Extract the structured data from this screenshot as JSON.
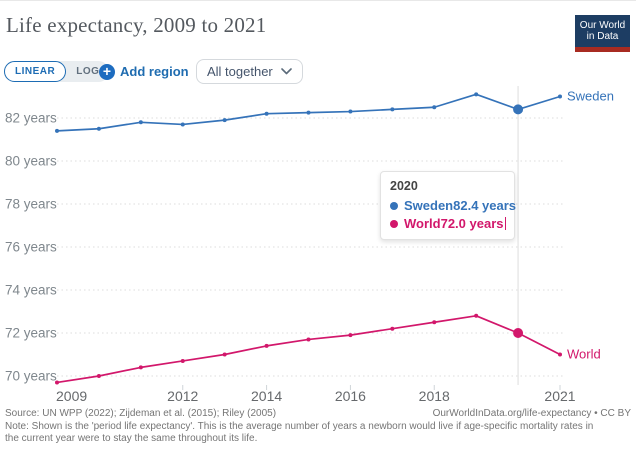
{
  "header": {
    "title": "Life expectancy, 2009 to 2021",
    "logo": {
      "line1": "Our World",
      "line2": "in Data"
    }
  },
  "controls": {
    "linear_label": "LINEAR",
    "log_label": "LOG",
    "add_region_label": "Add region",
    "plus_icon": "+",
    "entity_selector_value": "All together"
  },
  "tooltip": {
    "year": "2020",
    "rows": [
      {
        "name": "Sweden",
        "value": "82.4 years"
      },
      {
        "name": "World",
        "value": "72.0 years"
      }
    ]
  },
  "footer": {
    "source": "Source: UN WPP (2022); Zijdeman et al. (2015); Riley (2005)",
    "attribution": "OurWorldInData.org/life-expectancy • CC BY",
    "note": "Note: Shown is the 'period life expectancy'. This is the average number of years a newborn would live if age-specific mortality rates in the current year were to stay the same throughout its life."
  },
  "colors": {
    "sweden": "#3573b9",
    "world": "#d2176b",
    "grid": "#dcdcdc",
    "highlight_line": "#e8e8e8",
    "tick": "#cfd4d8",
    "y_label": "#7f878d",
    "x_label": "#66696c",
    "accent_blue": "#1d6cb4",
    "logo_bg": "#1d3d63",
    "logo_accent": "#a82b21"
  },
  "chart_data": {
    "type": "line",
    "title": "Life expectancy, 2009 to 2021",
    "xlabel": "",
    "ylabel": "",
    "x": [
      2009,
      2010,
      2011,
      2012,
      2013,
      2014,
      2015,
      2016,
      2017,
      2018,
      2019,
      2020,
      2021
    ],
    "series": [
      {
        "name": "Sweden",
        "color": "#3573b9",
        "values": [
          81.4,
          81.5,
          81.8,
          81.7,
          81.9,
          82.2,
          82.25,
          82.3,
          82.4,
          82.5,
          83.1,
          82.4,
          83.0
        ]
      },
      {
        "name": "World",
        "color": "#d2176b",
        "values": [
          69.7,
          70.0,
          70.4,
          70.7,
          71.0,
          71.4,
          71.7,
          71.9,
          72.2,
          72.5,
          72.8,
          72.0,
          71.0
        ]
      }
    ],
    "x_ticks": [
      2009,
      2012,
      2014,
      2016,
      2018,
      2021
    ],
    "y_ticks": [
      70,
      72,
      74,
      76,
      78,
      80,
      82
    ],
    "y_tick_suffix": " years",
    "xlim": [
      2009,
      2021
    ],
    "ylim": [
      69.6,
      83.5
    ],
    "grid": "horizontal-dashed",
    "legend_position": "end-of-line-labels",
    "highlight_year": 2020,
    "highlight_values": {
      "Sweden": "82.4 years",
      "World": "72.0 years"
    }
  }
}
